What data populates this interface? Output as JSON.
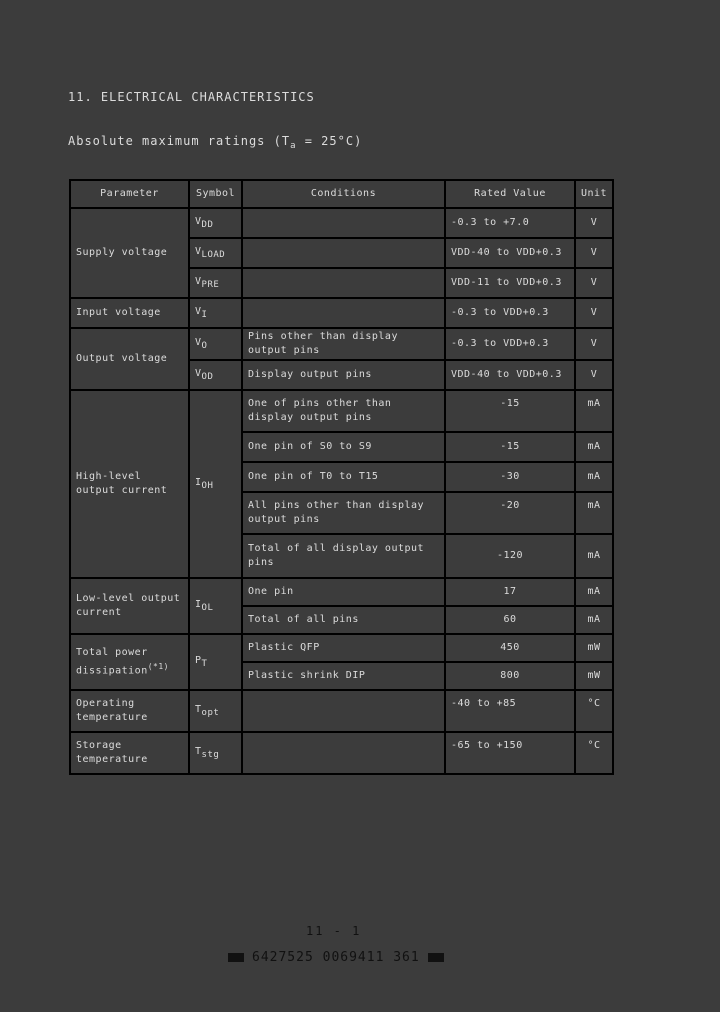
{
  "section_title": "11.  ELECTRICAL CHARACTERISTICS",
  "subtitle": {
    "text": "Absolute maximum ratings (T",
    "sub": "a",
    "rest": " = 25°C)"
  },
  "table": {
    "headers": [
      "Parameter",
      "Symbol",
      "Conditions",
      "Rated Value",
      "Unit"
    ],
    "supply": {
      "param": "Supply voltage",
      "rows": [
        {
          "sym": "V",
          "sub": "DD",
          "cond": "",
          "val": "-0.3 to +7.0",
          "unit": "V"
        },
        {
          "sym": "V",
          "sub": "LOAD",
          "cond": "",
          "val": "VDD-40 to VDD+0.3",
          "unit": "V"
        },
        {
          "sym": "V",
          "sub": "PRE",
          "cond": "",
          "val": "VDD-11 to VDD+0.3",
          "unit": "V"
        }
      ]
    },
    "input": {
      "param": "Input voltage",
      "sym": "V",
      "sub": "I",
      "val": "-0.3 to VDD+0.3",
      "unit": "V"
    },
    "output": {
      "param": "Output voltage",
      "rows": [
        {
          "sym": "V",
          "sub": "O",
          "cond": "Pins other than display output pins",
          "val": "-0.3 to VDD+0.3",
          "unit": "V"
        },
        {
          "sym": "V",
          "sub": "OD",
          "cond": "Display output pins",
          "val": "VDD-40 to VDD+0.3",
          "unit": "V"
        }
      ]
    },
    "ioh": {
      "param": "High-level output current",
      "sym": "I",
      "sub": "OH",
      "rows": [
        {
          "cond": "One of pins other than display output pins",
          "val": "-15",
          "unit": "mA"
        },
        {
          "cond": "One pin of S0 to S9",
          "val": "-15",
          "unit": "mA"
        },
        {
          "cond": "One pin of T0 to T15",
          "val": "-30",
          "unit": "mA"
        },
        {
          "cond": "All pins other than display output pins",
          "val": "-20",
          "unit": "mA"
        },
        {
          "cond": "Total of all display output pins",
          "val": "-120",
          "unit": "mA"
        }
      ]
    },
    "iol": {
      "param": "Low-level output current",
      "sym": "I",
      "sub": "OL",
      "rows": [
        {
          "cond": "One pin",
          "val": "17",
          "unit": "mA"
        },
        {
          "cond": "Total of all pins",
          "val": "60",
          "unit": "mA"
        }
      ]
    },
    "pt": {
      "param": "Total power dissipation",
      "note": "(*1)",
      "sym": "P",
      "sub": "T",
      "rows": [
        {
          "cond": "Plastic QFP",
          "val": "450",
          "unit": "mW"
        },
        {
          "cond": "Plastic shrink DIP",
          "val": "800",
          "unit": "mW"
        }
      ]
    },
    "topt": {
      "param": "Operating temperature",
      "sym": "T",
      "sub": "opt",
      "val": "-40 to +85",
      "unit": "°C"
    },
    "tstg": {
      "param": "Storage temperature",
      "sym": "T",
      "sub": "stg",
      "val": "-65 to +150",
      "unit": "°C"
    }
  },
  "page_number": "11 - 1",
  "barcode_text": "6427525 0069411 361"
}
